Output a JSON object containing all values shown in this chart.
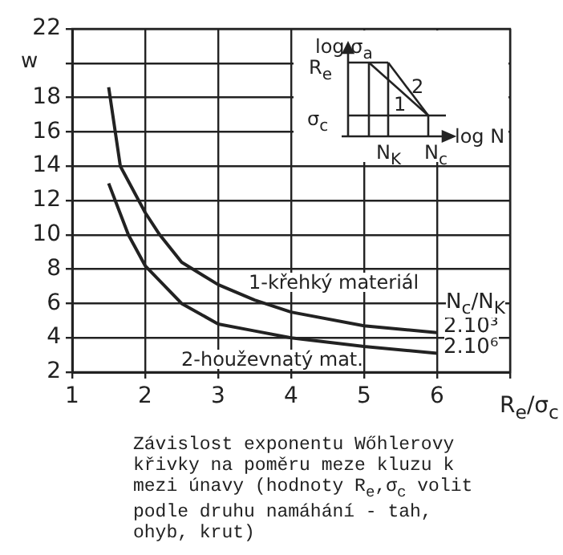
{
  "chart_data": {
    "type": "line",
    "xlabel": "R$_{e}$/σ$_{c}$",
    "ylabel": "w",
    "xlim": [
      1,
      7
    ],
    "xticks": [
      1,
      2,
      3,
      4,
      5,
      6,
      {
        "value": 7,
        "label": null
      }
    ],
    "ylim": [
      2,
      22
    ],
    "yticks": [
      2,
      4,
      6,
      8,
      10,
      12,
      14,
      16,
      18,
      {
        "value": 20,
        "label": null
      },
      22
    ],
    "grid": true,
    "legend": false,
    "marker": "none",
    "series": [
      {
        "name": "1-křehký materiál",
        "color": "#222222",
        "x": [
          1.5,
          1.66,
          2.0,
          2.2,
          2.5,
          3.0,
          3.5,
          4.0,
          5.0,
          6.0
        ],
        "values": [
          18.6,
          14.0,
          11.3,
          10.0,
          8.4,
          7.1,
          6.2,
          5.5,
          4.7,
          4.3
        ]
      },
      {
        "name": "2-houževnatý mat.",
        "color": "#222222",
        "x": [
          1.5,
          1.77,
          2.0,
          2.5,
          3.0,
          3.5,
          4.0,
          5.0,
          6.0
        ],
        "values": [
          13.0,
          10.0,
          8.2,
          6.0,
          4.8,
          4.4,
          4.0,
          3.5,
          3.1
        ]
      }
    ],
    "annotations": [
      "N$_{c}$/N$_{K}$",
      {
        "text": "2.10³",
        "x": 6,
        "y": 4.3
      },
      {
        "text": "2.10⁶",
        "x": 6,
        "y": 3.1
      },
      "log σ$_{a}$",
      "R$_{e}$",
      "σ$_{c}$",
      "log N",
      "N$_{K}$",
      "N$_{c}$",
      "1",
      "2",
      "Závislost exponentu Wőhlerovy křivky na poměru meze kluzu k mezi únavy (hodnoty R$_{e}$,σ$_{c}$ volit podle druhu namáhání - tah, ohyb, krut)"
    ]
  }
}
